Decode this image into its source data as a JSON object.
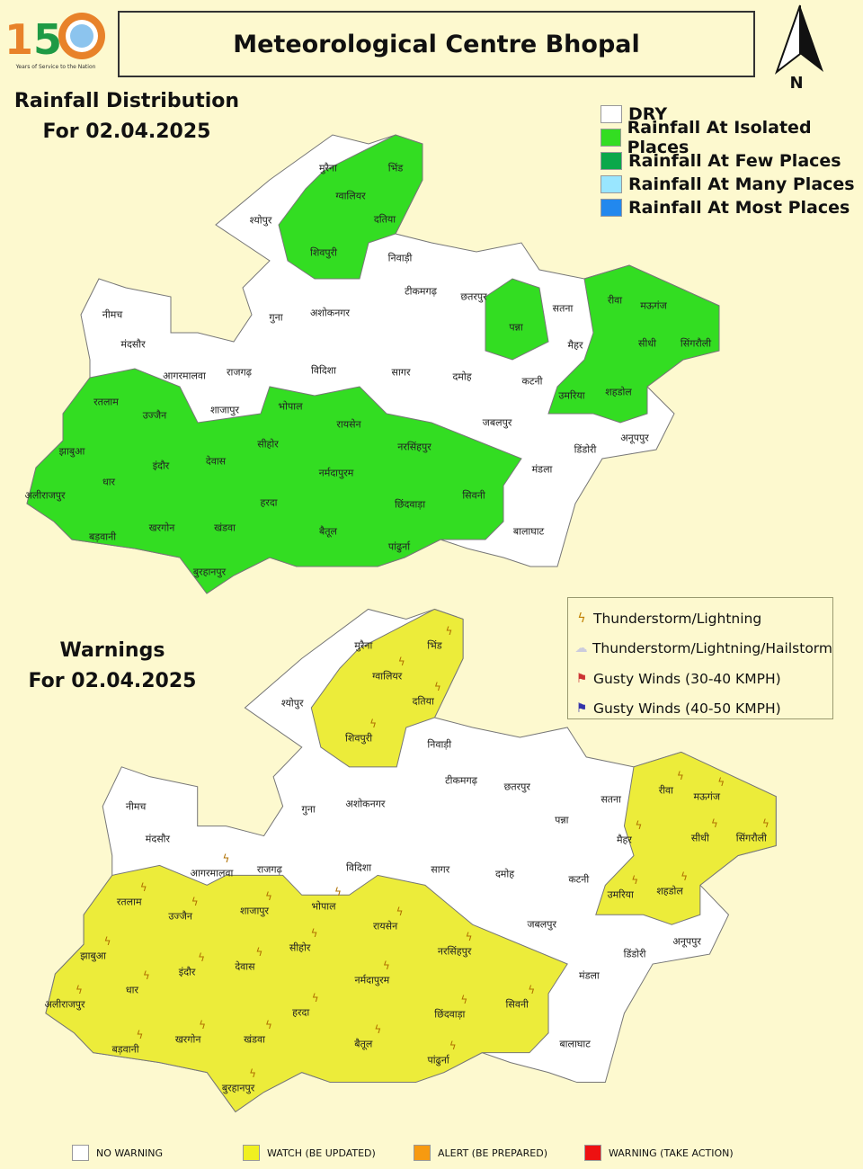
{
  "header": {
    "title": "Meteorological Centre Bhopal",
    "logo_text": "150 Years of Service to the Nation",
    "north_label": "N"
  },
  "rainfall": {
    "heading_line1": "Rainfall Distribution",
    "heading_line2": "For 02.04.2025",
    "legend": [
      {
        "label": "DRY",
        "color": "#ffffff"
      },
      {
        "label": "Rainfall At Isolated Places",
        "color": "#33dd22"
      },
      {
        "label": "Rainfall At Few Places",
        "color": "#0aa84a"
      },
      {
        "label": "Rainfall At Many Places",
        "color": "#99e6ff"
      },
      {
        "label": "Rainfall At Most Places",
        "color": "#2288ee"
      }
    ]
  },
  "warnings": {
    "heading_line1": "Warnings",
    "heading_line2": "For 02.04.2025",
    "icon_legend": [
      {
        "label": "Thunderstorm/Lightning",
        "icon": "lightning-icon"
      },
      {
        "label": "Thunderstorm/Lightning/Hailstorm",
        "icon": "hailstorm-icon"
      },
      {
        "label": "Gusty Winds (30-40 KMPH)",
        "icon": "gusty-wind-red-icon"
      },
      {
        "label": "Gusty Winds (40-50 KMPH)",
        "icon": "gusty-wind-blue-icon"
      }
    ],
    "level_legend": [
      {
        "label": "NO WARNING",
        "color": "#ffffff"
      },
      {
        "label": "WATCH (BE UPDATED)",
        "color": "#f0f020"
      },
      {
        "label": "ALERT (BE PREPARED)",
        "color": "#f79a10"
      },
      {
        "label": "WARNING (TAKE ACTION)",
        "color": "#ee1111"
      }
    ]
  },
  "colors": {
    "rain": "#33dd22",
    "watch": "#ecec3a",
    "none": "#ffffff",
    "background": "#fdf9cf"
  },
  "districts": [
    {
      "name": "मुरैना",
      "rain": "DRY",
      "warning": "NO WARNING"
    },
    {
      "name": "भिंड",
      "rain": "Rainfall At Isolated Places",
      "warning": "WATCH (BE UPDATED)"
    },
    {
      "name": "ग्वालियर",
      "rain": "Rainfall At Isolated Places",
      "warning": "WATCH (BE UPDATED)"
    },
    {
      "name": "दतिया",
      "rain": "Rainfall At Isolated Places",
      "warning": "WATCH (BE UPDATED)"
    },
    {
      "name": "श्योपुर",
      "rain": "DRY",
      "warning": "NO WARNING"
    },
    {
      "name": "शिवपुरी",
      "rain": "Rainfall At Isolated Places",
      "warning": "WATCH (BE UPDATED)"
    },
    {
      "name": "निवाड़ी",
      "rain": "DRY",
      "warning": "NO WARNING"
    },
    {
      "name": "टीकमगढ़",
      "rain": "DRY",
      "warning": "NO WARNING"
    },
    {
      "name": "छतरपुर",
      "rain": "DRY",
      "warning": "NO WARNING"
    },
    {
      "name": "पन्ना",
      "rain": "Rainfall At Isolated Places",
      "warning": "NO WARNING"
    },
    {
      "name": "सतना",
      "rain": "DRY",
      "warning": "NO WARNING"
    },
    {
      "name": "रीवा",
      "rain": "Rainfall At Isolated Places",
      "warning": "WATCH (BE UPDATED)"
    },
    {
      "name": "मऊगंज",
      "rain": "Rainfall At Isolated Places",
      "warning": "WATCH (BE UPDATED)"
    },
    {
      "name": "सीधी",
      "rain": "Rainfall At Isolated Places",
      "warning": "WATCH (BE UPDATED)"
    },
    {
      "name": "सिंगरौली",
      "rain": "Rainfall At Isolated Places",
      "warning": "WATCH (BE UPDATED)"
    },
    {
      "name": "मैहर",
      "rain": "DRY",
      "warning": "WATCH (BE UPDATED)"
    },
    {
      "name": "कटनी",
      "rain": "DRY",
      "warning": "NO WARNING"
    },
    {
      "name": "उमरिया",
      "rain": "Rainfall At Isolated Places",
      "warning": "WATCH (BE UPDATED)"
    },
    {
      "name": "शहडोल",
      "rain": "Rainfall At Isolated Places",
      "warning": "WATCH (BE UPDATED)"
    },
    {
      "name": "अनूपपुर",
      "rain": "DRY",
      "warning": "NO WARNING"
    },
    {
      "name": "डिंडोरी",
      "rain": "DRY",
      "warning": "NO WARNING"
    },
    {
      "name": "जबलपुर",
      "rain": "DRY",
      "warning": "NO WARNING"
    },
    {
      "name": "मंडला",
      "rain": "DRY",
      "warning": "NO WARNING"
    },
    {
      "name": "बालाघाट",
      "rain": "DRY",
      "warning": "NO WARNING"
    },
    {
      "name": "सिवनी",
      "rain": "Rainfall At Isolated Places",
      "warning": "WATCH (BE UPDATED)"
    },
    {
      "name": "छिंदवाड़ा",
      "rain": "Rainfall At Isolated Places",
      "warning": "WATCH (BE UPDATED)"
    },
    {
      "name": "पांढुर्ना",
      "rain": "Rainfall At Isolated Places",
      "warning": "WATCH (BE UPDATED)"
    },
    {
      "name": "बैतूल",
      "rain": "Rainfall At Isolated Places",
      "warning": "WATCH (BE UPDATED)"
    },
    {
      "name": "नर्मदापुरम",
      "rain": "Rainfall At Isolated Places",
      "warning": "WATCH (BE UPDATED)"
    },
    {
      "name": "नरसिंहपुर",
      "rain": "Rainfall At Isolated Places",
      "warning": "WATCH (BE UPDATED)"
    },
    {
      "name": "रायसेन",
      "rain": "Rainfall At Isolated Places",
      "warning": "WATCH (BE UPDATED)"
    },
    {
      "name": "दमोह",
      "rain": "DRY",
      "warning": "NO WARNING"
    },
    {
      "name": "सागर",
      "rain": "DRY",
      "warning": "NO WARNING"
    },
    {
      "name": "विदिशा",
      "rain": "DRY",
      "warning": "NO WARNING"
    },
    {
      "name": "भोपाल",
      "rain": "DRY",
      "warning": "WATCH (BE UPDATED)"
    },
    {
      "name": "सीहोर",
      "rain": "Rainfall At Isolated Places",
      "warning": "WATCH (BE UPDATED)"
    },
    {
      "name": "गुना",
      "rain": "DRY",
      "warning": "NO WARNING"
    },
    {
      "name": "अशोकनगर",
      "rain": "DRY",
      "warning": "NO WARNING"
    },
    {
      "name": "नीमच",
      "rain": "DRY",
      "warning": "NO WARNING"
    },
    {
      "name": "मंदसौर",
      "rain": "DRY",
      "warning": "NO WARNING"
    },
    {
      "name": "आगरमालवा",
      "rain": "DRY",
      "warning": "WATCH (BE UPDATED)"
    },
    {
      "name": "राजगढ़",
      "rain": "DRY",
      "warning": "NO WARNING"
    },
    {
      "name": "शाजापुर",
      "rain": "DRY",
      "warning": "WATCH (BE UPDATED)"
    },
    {
      "name": "रतलाम",
      "rain": "Rainfall At Isolated Places",
      "warning": "WATCH (BE UPDATED)"
    },
    {
      "name": "उज्जैन",
      "rain": "Rainfall At Isolated Places",
      "warning": "WATCH (BE UPDATED)"
    },
    {
      "name": "झाबुआ",
      "rain": "Rainfall At Isolated Places",
      "warning": "WATCH (BE UPDATED)"
    },
    {
      "name": "धार",
      "rain": "Rainfall At Isolated Places",
      "warning": "WATCH (BE UPDATED)"
    },
    {
      "name": "इंदौर",
      "rain": "Rainfall At Isolated Places",
      "warning": "WATCH (BE UPDATED)"
    },
    {
      "name": "देवास",
      "rain": "Rainfall At Isolated Places",
      "warning": "WATCH (BE UPDATED)"
    },
    {
      "name": "अलीराजपुर",
      "rain": "Rainfall At Isolated Places",
      "warning": "WATCH (BE UPDATED)"
    },
    {
      "name": "हरदा",
      "rain": "Rainfall At Isolated Places",
      "warning": "WATCH (BE UPDATED)"
    },
    {
      "name": "खंडवा",
      "rain": "Rainfall At Isolated Places",
      "warning": "WATCH (BE UPDATED)"
    },
    {
      "name": "खरगोन",
      "rain": "Rainfall At Isolated Places",
      "warning": "WATCH (BE UPDATED)"
    },
    {
      "name": "बड़वानी",
      "rain": "Rainfall At Isolated Places",
      "warning": "WATCH (BE UPDATED)"
    },
    {
      "name": "बुरहानपुर",
      "rain": "Rainfall At Isolated Places",
      "warning": "WATCH (BE UPDATED)"
    }
  ]
}
